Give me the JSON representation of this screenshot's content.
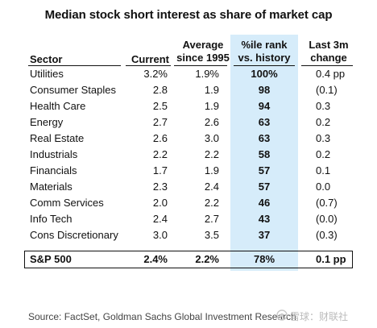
{
  "title": "Median stock short interest as share of market cap",
  "headers": {
    "sector": "Sector",
    "current": "Current",
    "avg_line1": "Average",
    "avg_line2": "since 1995",
    "rank_line1": "%ile rank",
    "rank_line2": "vs. history",
    "chg_line1": "Last 3m",
    "chg_line2": "change"
  },
  "rows": [
    {
      "sector": "Utilities",
      "current": "3.2%",
      "avg": "1.9%",
      "rank": "100%",
      "chg": "0.4 pp"
    },
    {
      "sector": "Consumer Staples",
      "current": "2.8",
      "avg": "1.9",
      "rank": "98",
      "chg": "(0.1)"
    },
    {
      "sector": "Health Care",
      "current": "2.5",
      "avg": "1.9",
      "rank": "94",
      "chg": "0.3"
    },
    {
      "sector": "Energy",
      "current": "2.7",
      "avg": "2.6",
      "rank": "63",
      "chg": "0.2"
    },
    {
      "sector": "Real Estate",
      "current": "2.6",
      "avg": "3.0",
      "rank": "63",
      "chg": "0.3"
    },
    {
      "sector": "Industrials",
      "current": "2.2",
      "avg": "2.2",
      "rank": "58",
      "chg": "0.2"
    },
    {
      "sector": "Financials",
      "current": "1.7",
      "avg": "1.9",
      "rank": "57",
      "chg": "0.1"
    },
    {
      "sector": "Materials",
      "current": "2.3",
      "avg": "2.4",
      "rank": "57",
      "chg": "0.0"
    },
    {
      "sector": "Comm Services",
      "current": "2.0",
      "avg": "2.2",
      "rank": "46",
      "chg": "(0.7)"
    },
    {
      "sector": "Info Tech",
      "current": "2.4",
      "avg": "2.7",
      "rank": "43",
      "chg": "(0.0)"
    },
    {
      "sector": "Cons Discretionary",
      "current": "3.0",
      "avg": "3.5",
      "rank": "37",
      "chg": "(0.3)"
    }
  ],
  "total": {
    "sector": "S&P 500",
    "current": "2.4%",
    "avg": "2.2%",
    "rank": "78%",
    "chg": "0.1 pp"
  },
  "source": "Source: FactSet, Goldman Sachs Global Investment Research",
  "watermark": "雪球：财联社",
  "colors": {
    "highlight": "#d6ecfa",
    "text": "#111111",
    "source": "#444444"
  }
}
